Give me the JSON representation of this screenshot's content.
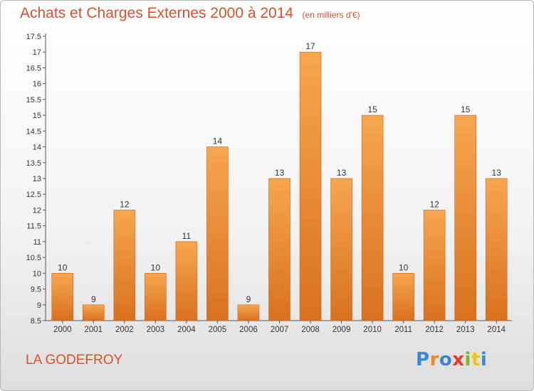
{
  "chart_data": {
    "type": "bar",
    "title": "Achats et Charges Externes 2000 à 2014",
    "subtitle": "(en milliers d'€)",
    "categories": [
      "2000",
      "2001",
      "2002",
      "2003",
      "2004",
      "2005",
      "2006",
      "2007",
      "2008",
      "2009",
      "2010",
      "2011",
      "2012",
      "2013",
      "2014"
    ],
    "values": [
      10,
      9,
      12,
      10,
      11,
      14,
      9,
      13,
      17,
      13,
      15,
      10,
      12,
      15,
      13
    ],
    "data_labels": [
      "10",
      "9",
      "12",
      "10",
      "11",
      "14",
      "9",
      "13",
      "17",
      "13",
      "15",
      "10",
      "12",
      "15",
      "13"
    ],
    "ylim": [
      8.5,
      17.5
    ],
    "yticks": [
      "8.5",
      "9",
      "9.5",
      "10",
      "10.5",
      "11",
      "11.5",
      "12",
      "12.5",
      "13",
      "13.5",
      "14",
      "14.5",
      "15",
      "15.5",
      "16",
      "16.5",
      "17",
      "17.5"
    ],
    "grid": false,
    "bar_color_top": "#f7a650",
    "bar_color_bottom": "#d8711f"
  },
  "footer": {
    "place": "LA GODEFROY",
    "logo_letters": [
      "P",
      "r",
      "o",
      "x",
      "i",
      "t",
      "i"
    ],
    "logo_colors": [
      "#3a87d6",
      "#f08a1c",
      "#3a87d6",
      "#e63a2a",
      "#7cb82f",
      "#f0c21c",
      "#3a87d6"
    ]
  }
}
